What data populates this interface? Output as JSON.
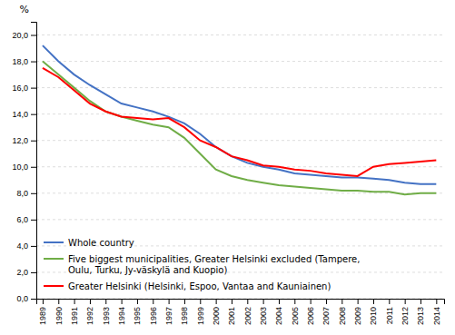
{
  "chart_data": {
    "type": "line",
    "x": [
      1989,
      1990,
      1991,
      1992,
      1993,
      1994,
      1995,
      1996,
      1997,
      1998,
      1999,
      2000,
      2001,
      2002,
      2003,
      2004,
      2005,
      2006,
      2007,
      2008,
      2009,
      2010,
      2011,
      2012,
      2013,
      2014
    ],
    "series": [
      {
        "name": "Whole country",
        "color": "#4472C4",
        "values": [
          19.2,
          18.0,
          17.0,
          16.2,
          15.5,
          14.8,
          14.5,
          14.2,
          13.8,
          13.3,
          12.5,
          11.5,
          10.8,
          10.3,
          10.0,
          9.8,
          9.5,
          9.4,
          9.3,
          9.2,
          9.2,
          9.1,
          9.0,
          8.8,
          8.7,
          8.7
        ]
      },
      {
        "name": "Five biggest municipalities, Greater Helsinki excluded (Tampere,\nOulu, Turku, Jy-väskylä and Kuopio)",
        "color": "#70AD47",
        "values": [
          18.0,
          17.0,
          16.0,
          15.0,
          14.2,
          13.8,
          13.5,
          13.2,
          13.0,
          12.2,
          11.0,
          9.8,
          9.3,
          9.0,
          8.8,
          8.6,
          8.5,
          8.4,
          8.3,
          8.2,
          8.2,
          8.1,
          8.1,
          7.9,
          8.0,
          8.0
        ]
      },
      {
        "name": "Greater Helsinki (Helsinki, Espoo, Vantaa and Kauniainen)",
        "color": "#FF0000",
        "values": [
          17.5,
          16.8,
          15.8,
          14.8,
          14.2,
          13.8,
          13.7,
          13.6,
          13.7,
          13.0,
          12.0,
          11.5,
          10.8,
          10.5,
          10.1,
          10.0,
          9.8,
          9.7,
          9.5,
          9.4,
          9.3,
          10.0,
          10.2,
          10.3,
          10.4,
          10.5
        ]
      }
    ],
    "y_label": "%",
    "xlim": [
      1988.6,
      2014.5
    ],
    "xticks": [
      1989,
      1990,
      1991,
      1992,
      1993,
      1994,
      1995,
      1996,
      1997,
      1998,
      1999,
      2000,
      2001,
      2002,
      2003,
      2004,
      2005,
      2006,
      2007,
      2008,
      2009,
      2010,
      2011,
      2012,
      2013,
      2014
    ],
    "ylim": [
      0,
      21
    ],
    "yticks": [
      {
        "value": 0.0,
        "label": "0,0"
      },
      {
        "value": 2.0,
        "label": "2,0"
      },
      {
        "value": 4.0,
        "label": "4,0"
      },
      {
        "value": 6.0,
        "label": "6,0"
      },
      {
        "value": 8.0,
        "label": "8,0"
      },
      {
        "value": 10.0,
        "label": "10,0"
      },
      {
        "value": 12.0,
        "label": "12,0"
      },
      {
        "value": 14.0,
        "label": "14,0"
      },
      {
        "value": 16.0,
        "label": "16,0"
      },
      {
        "value": 18.0,
        "label": "18,0"
      },
      {
        "value": 20.0,
        "label": "20,0"
      }
    ],
    "grid": true,
    "legend": "lower left"
  }
}
